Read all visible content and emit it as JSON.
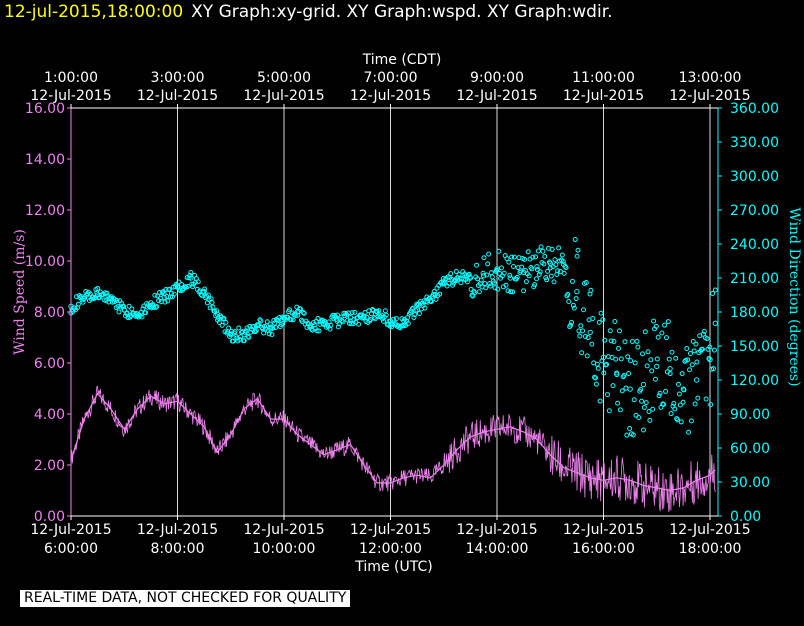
{
  "header": {
    "timestamp": "12-jul-2015,18:00:00",
    "titles": "XY Graph:xy-grid.  XY Graph:wspd.  XY Graph:wdir."
  },
  "footer": {
    "note": "REAL-TIME DATA, NOT CHECKED FOR QUALITY"
  },
  "colors": {
    "background": "#000000",
    "axes": "#ffffff",
    "wspd": "#ee82ee",
    "wdir": "#00ffff",
    "timestamp": "#ffff00"
  },
  "chart_data": {
    "type": "scatter",
    "x_range_utc_hours": [
      6.0,
      18.15
    ],
    "grid": true,
    "top_axis": {
      "label": "Time (CDT)",
      "ticks": [
        {
          "t": "1:00:00",
          "d": "12-Jul-2015"
        },
        {
          "t": "3:00:00",
          "d": "12-Jul-2015"
        },
        {
          "t": "5:00:00",
          "d": "12-Jul-2015"
        },
        {
          "t": "7:00:00",
          "d": "12-Jul-2015"
        },
        {
          "t": "9:00:00",
          "d": "12-Jul-2015"
        },
        {
          "t": "11:00:00",
          "d": "12-Jul-2015"
        },
        {
          "t": "13:00:00",
          "d": "12-Jul-2015"
        }
      ]
    },
    "bottom_axis": {
      "label": "Time (UTC)",
      "ticks": [
        {
          "t": "6:00:00",
          "d": "12-Jul-2015"
        },
        {
          "t": "8:00:00",
          "d": "12-Jul-2015"
        },
        {
          "t": "10:00:00",
          "d": "12-Jul-2015"
        },
        {
          "t": "12:00:00",
          "d": "12-Jul-2015"
        },
        {
          "t": "14:00:00",
          "d": "12-Jul-2015"
        },
        {
          "t": "16:00:00",
          "d": "12-Jul-2015"
        },
        {
          "t": "18:00:00",
          "d": "12-Jul-2015"
        }
      ]
    },
    "left_axis": {
      "label": "Wind Speed (m/s)",
      "ylim": [
        0,
        16
      ],
      "ticks": [
        "0.00",
        "2.00",
        "4.00",
        "6.00",
        "8.00",
        "10.00",
        "12.00",
        "14.00",
        "16.00"
      ]
    },
    "right_axis": {
      "label": "Wind Direction (degrees)",
      "ylim": [
        0,
        360
      ],
      "ticks": [
        "0.00",
        "30.00",
        "60.00",
        "90.00",
        "120.00",
        "150.00",
        "180.00",
        "210.00",
        "240.00",
        "270.00",
        "300.00",
        "330.00",
        "360.00"
      ]
    },
    "series": [
      {
        "id": "wspd",
        "type": "line",
        "x": [
          6.0,
          6.25,
          6.5,
          6.75,
          7.0,
          7.25,
          7.5,
          7.75,
          8.0,
          8.25,
          8.5,
          8.75,
          9.0,
          9.25,
          9.5,
          9.75,
          10.0,
          10.25,
          10.5,
          10.75,
          11.0,
          11.25,
          11.5,
          11.75,
          12.0,
          12.25,
          12.5,
          12.75,
          13.0,
          13.25,
          13.5,
          13.75,
          14.0,
          14.25,
          14.5,
          14.75,
          15.0,
          15.25,
          15.5,
          15.75,
          16.0,
          16.25,
          16.5,
          16.75,
          17.0,
          17.25,
          17.5,
          17.75,
          18.0,
          18.1
        ],
        "values": [
          2.2,
          3.8,
          4.8,
          4.2,
          3.4,
          4.2,
          4.7,
          4.4,
          4.5,
          4.0,
          3.5,
          2.5,
          3.2,
          4.2,
          4.6,
          3.8,
          3.8,
          3.2,
          2.8,
          2.4,
          2.6,
          2.8,
          2.0,
          1.3,
          1.3,
          1.5,
          1.6,
          1.5,
          2.0,
          2.6,
          3.1,
          3.3,
          3.4,
          3.5,
          3.3,
          3.0,
          2.4,
          1.9,
          1.7,
          1.5,
          1.4,
          1.5,
          1.4,
          1.2,
          1.1,
          1.0,
          1.1,
          1.4,
          1.6,
          1.8
        ]
      },
      {
        "id": "wdir",
        "type": "scatter",
        "x": [
          6.0,
          6.25,
          6.5,
          6.75,
          7.0,
          7.25,
          7.5,
          7.75,
          8.0,
          8.25,
          8.5,
          8.75,
          9.0,
          9.25,
          9.5,
          9.75,
          10.0,
          10.25,
          10.5,
          10.75,
          11.0,
          11.25,
          11.5,
          11.75,
          12.0,
          12.25,
          12.5,
          12.75,
          13.0,
          13.25,
          13.5,
          13.75,
          14.0,
          14.25,
          14.5,
          14.75,
          15.0,
          15.25,
          15.5,
          15.75,
          16.0,
          16.25,
          16.5,
          16.75,
          17.0,
          17.25,
          17.5,
          17.75,
          18.0,
          18.1
        ],
        "values": [
          185,
          192,
          195,
          192,
          182,
          178,
          188,
          193,
          202,
          210,
          198,
          178,
          160,
          160,
          168,
          165,
          175,
          180,
          168,
          170,
          172,
          175,
          175,
          180,
          172,
          168,
          182,
          190,
          206,
          210,
          210,
          212,
          218,
          210,
          215,
          220,
          223,
          222,
          198,
          162,
          140,
          125,
          112,
          116,
          132,
          130,
          112,
          120,
          138,
          170
        ]
      }
    ]
  }
}
